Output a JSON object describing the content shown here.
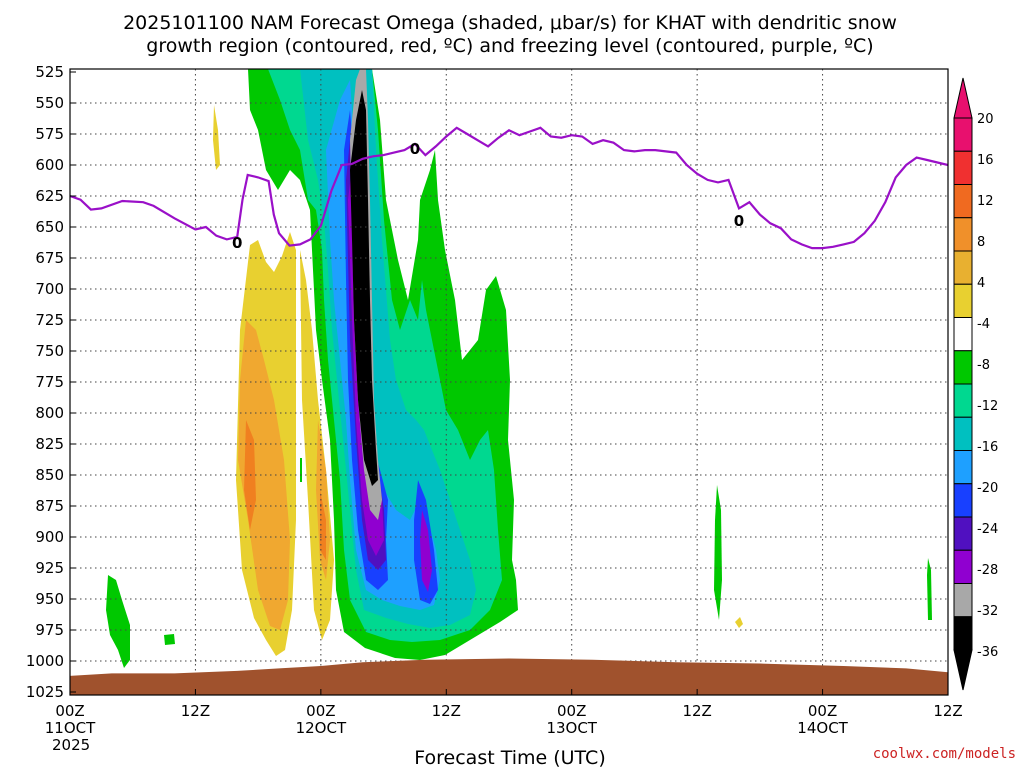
{
  "chart_data": {
    "type": "heatmap",
    "title_line1": "2025101100 NAM Forecast Omega (shaded, μbar/s) for KHAT with dendritic snow",
    "title_line2": "growth region (contoured, red, ºC) and freezing level (contoured, purple, ºC)",
    "xlabel": "Forecast Time (UTC)",
    "credit": "coolwx.com/models",
    "x_range_hours": [
      0,
      84
    ],
    "y_range_mb": [
      525,
      1025
    ],
    "x_ticks": [
      {
        "h": 0,
        "l1": "00Z",
        "l2": "11OCT",
        "l3": "2025"
      },
      {
        "h": 12,
        "l1": "12Z",
        "l2": "",
        "l3": ""
      },
      {
        "h": 24,
        "l1": "00Z",
        "l2": "12OCT",
        "l3": ""
      },
      {
        "h": 36,
        "l1": "12Z",
        "l2": "",
        "l3": ""
      },
      {
        "h": 48,
        "l1": "00Z",
        "l2": "13OCT",
        "l3": ""
      },
      {
        "h": 60,
        "l1": "12Z",
        "l2": "",
        "l3": ""
      },
      {
        "h": 72,
        "l1": "00Z",
        "l2": "14OCT",
        "l3": ""
      },
      {
        "h": 84,
        "l1": "12Z",
        "l2": "",
        "l3": ""
      }
    ],
    "y_ticks": [
      "525",
      "550",
      "575",
      "600",
      "625",
      "650",
      "675",
      "700",
      "725",
      "750",
      "775",
      "800",
      "825",
      "850",
      "875",
      "900",
      "925",
      "950",
      "975",
      "1000",
      "1025"
    ],
    "colorbar": {
      "labels": [
        "20",
        "16",
        "12",
        "8",
        "4",
        "-4",
        "-8",
        "-12",
        "-16",
        "-20",
        "-24",
        "-28",
        "-32",
        "-36"
      ],
      "colors": [
        "#e8106e",
        "#f03030",
        "#f06a20",
        "#f0902a",
        "#e8b030",
        "#e8d030",
        "#ffffff",
        "#00c800",
        "#00d890",
        "#00c0c0",
        "#1ea0ff",
        "#1840ff",
        "#5010c0",
        "#9000d0",
        "#a8a8a8",
        "#000000"
      ],
      "top_color": "#e8106e",
      "bottom_color": "#000000"
    },
    "freezing_level": {
      "color": "#9a10c8",
      "label": "0",
      "label_points": [
        {
          "h": 16,
          "p": 663
        },
        {
          "h": 33,
          "p": 587
        },
        {
          "h": 64,
          "p": 645
        }
      ],
      "points": [
        [
          0,
          625
        ],
        [
          1,
          628
        ],
        [
          2,
          636
        ],
        [
          3,
          635
        ],
        [
          5,
          629
        ],
        [
          7,
          630
        ],
        [
          8,
          633
        ],
        [
          10,
          643
        ],
        [
          12,
          652
        ],
        [
          13,
          650
        ],
        [
          14,
          657
        ],
        [
          15,
          660
        ],
        [
          16,
          658
        ],
        [
          16.5,
          628
        ],
        [
          17,
          608
        ],
        [
          18,
          610
        ],
        [
          19,
          613
        ],
        [
          19.5,
          640
        ],
        [
          20,
          655
        ],
        [
          21,
          665
        ],
        [
          22,
          664
        ],
        [
          23,
          660
        ],
        [
          24,
          649
        ],
        [
          25,
          621
        ],
        [
          26,
          600
        ],
        [
          27,
          599
        ],
        [
          28,
          595
        ],
        [
          29,
          593
        ],
        [
          30,
          592
        ],
        [
          31,
          590
        ],
        [
          32,
          588
        ],
        [
          33,
          583
        ],
        [
          34,
          592
        ],
        [
          35,
          585
        ],
        [
          36,
          577
        ],
        [
          37,
          570
        ],
        [
          38,
          575
        ],
        [
          39,
          580
        ],
        [
          40,
          585
        ],
        [
          41,
          578
        ],
        [
          42,
          572
        ],
        [
          43,
          576
        ],
        [
          44,
          573
        ],
        [
          45,
          570
        ],
        [
          46,
          577
        ],
        [
          47,
          578
        ],
        [
          48,
          576
        ],
        [
          49,
          577
        ],
        [
          50,
          583
        ],
        [
          51,
          580
        ],
        [
          52,
          582
        ],
        [
          53,
          588
        ],
        [
          54,
          589
        ],
        [
          55,
          588
        ],
        [
          56,
          588
        ],
        [
          57,
          589
        ],
        [
          58,
          590
        ],
        [
          59,
          600
        ],
        [
          60,
          607
        ],
        [
          61,
          612
        ],
        [
          62,
          614
        ],
        [
          63,
          612
        ],
        [
          64,
          635
        ],
        [
          65,
          630
        ],
        [
          66,
          640
        ],
        [
          67,
          647
        ],
        [
          68,
          651
        ],
        [
          69,
          660
        ],
        [
          70,
          664
        ],
        [
          71,
          667
        ],
        [
          72,
          667
        ],
        [
          73,
          666
        ],
        [
          74,
          664
        ],
        [
          75,
          662
        ],
        [
          76,
          655
        ],
        [
          77,
          645
        ],
        [
          78,
          630
        ],
        [
          79,
          610
        ],
        [
          80,
          600
        ],
        [
          81,
          594
        ],
        [
          82,
          596
        ],
        [
          83,
          598
        ],
        [
          84,
          600
        ]
      ]
    },
    "terrain_color": "#a0522d",
    "terrain_surface": [
      [
        0,
        1012
      ],
      [
        4,
        1010
      ],
      [
        10,
        1010
      ],
      [
        16,
        1008
      ],
      [
        20,
        1006
      ],
      [
        24,
        1004
      ],
      [
        28,
        1001
      ],
      [
        34,
        999
      ],
      [
        42,
        998
      ],
      [
        50,
        999
      ],
      [
        58,
        1001
      ],
      [
        66,
        1002
      ],
      [
        74,
        1004
      ],
      [
        80,
        1006
      ],
      [
        84,
        1009
      ]
    ]
  }
}
